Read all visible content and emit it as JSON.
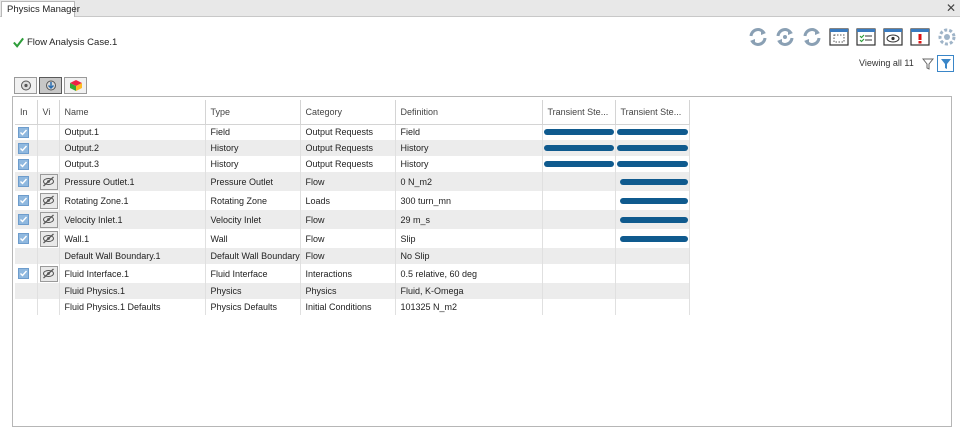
{
  "tab": {
    "title": "Physics Manager",
    "close": "✕"
  },
  "header": {
    "case_title": "Flow Analysis Case.1"
  },
  "toolbar": {
    "icons": [
      "refresh-icon",
      "refresh-all-icon",
      "refresh-selected-icon",
      "selection-box-icon",
      "list-check-icon",
      "eye-icon",
      "error-icon",
      "settings-gear-icon"
    ]
  },
  "viewing": {
    "text": "Viewing all 11"
  },
  "columns": {
    "in": "In",
    "vi": "Vi",
    "name": "Name",
    "type": "Type",
    "category": "Category",
    "definition": "Definition",
    "transient1": "Transient Ste...",
    "transient2": "Transient Ste..."
  },
  "rows": [
    {
      "name": "Output.1",
      "type": "Field",
      "category": "Output Requests",
      "definition": "Field",
      "checked": true,
      "vis": false,
      "t1": 1,
      "t2": 1
    },
    {
      "name": "Output.2",
      "type": "History",
      "category": "Output Requests",
      "definition": "History",
      "checked": true,
      "vis": false,
      "t1": 1,
      "t2": 1
    },
    {
      "name": "Output.3",
      "type": "History",
      "category": "Output Requests",
      "definition": "History",
      "checked": true,
      "vis": false,
      "t1": 1,
      "t2": 1
    },
    {
      "name": "Pressure Outlet.1",
      "type": "Pressure Outlet",
      "category": "Flow",
      "definition": "0 N_m2",
      "checked": true,
      "vis": true,
      "t1": 0,
      "t2": 1
    },
    {
      "name": "Rotating Zone.1",
      "type": "Rotating Zone",
      "category": "Loads",
      "definition": "300 turn_mn",
      "checked": true,
      "vis": true,
      "t1": 0,
      "t2": 1
    },
    {
      "name": "Velocity Inlet.1",
      "type": "Velocity Inlet",
      "category": "Flow",
      "definition": "29 m_s",
      "checked": true,
      "vis": true,
      "t1": 0,
      "t2": 1
    },
    {
      "name": "Wall.1",
      "type": "Wall",
      "category": "Flow",
      "definition": "Slip",
      "checked": true,
      "vis": true,
      "t1": 0,
      "t2": 1
    },
    {
      "name": "Default Wall Boundary.1",
      "type": "Default Wall Boundary",
      "category": "Flow",
      "definition": "No Slip",
      "checked": false,
      "vis": false,
      "t1": 0,
      "t2": 0
    },
    {
      "name": "Fluid Interface.1",
      "type": "Fluid Interface",
      "category": "Interactions",
      "definition": "0.5 relative, 60 deg",
      "checked": true,
      "vis": true,
      "t1": 0,
      "t2": 0
    },
    {
      "name": "Fluid Physics.1",
      "type": "Physics",
      "category": "Physics",
      "definition": "Fluid, K-Omega",
      "checked": false,
      "vis": false,
      "t1": 0,
      "t2": 0
    },
    {
      "name": "Fluid Physics.1 Defaults",
      "type": "Physics Defaults",
      "category": "Initial Conditions",
      "definition": "101325 N_m2",
      "checked": false,
      "vis": false,
      "t1": 0,
      "t2": 0
    }
  ]
}
